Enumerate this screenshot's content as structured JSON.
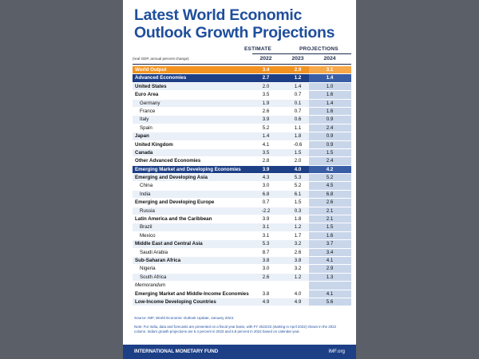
{
  "title": {
    "line1": "Latest World Economic",
    "line2": "Outlook Growth Projections"
  },
  "header": {
    "estimate": "ESTIMATE",
    "projections": "PROJECTIONS",
    "subtitle": "(real GDP, annual percent change)",
    "years": [
      "2022",
      "2023",
      "2024"
    ]
  },
  "rows": [
    {
      "label": "World Output",
      "v": [
        "3.4",
        "2.9",
        "3.1"
      ],
      "style": "orange"
    },
    {
      "label": "Advanced Economies",
      "v": [
        "2.7",
        "1.2",
        "1.4"
      ],
      "style": "navy"
    },
    {
      "label": "United States",
      "v": [
        "2.0",
        "1.4",
        "1.0"
      ],
      "style": "light"
    },
    {
      "label": "Euro Area",
      "v": [
        "3.5",
        "0.7",
        "1.6"
      ],
      "style": "white"
    },
    {
      "label": "Germany",
      "v": [
        "1.9",
        "0.1",
        "1.4"
      ],
      "style": "light",
      "indent": true
    },
    {
      "label": "France",
      "v": [
        "2.6",
        "0.7",
        "1.6"
      ],
      "style": "white",
      "indent": true
    },
    {
      "label": "Italy",
      "v": [
        "3.9",
        "0.6",
        "0.9"
      ],
      "style": "light",
      "indent": true
    },
    {
      "label": "Spain",
      "v": [
        "5.2",
        "1.1",
        "2.4"
      ],
      "style": "white",
      "indent": true
    },
    {
      "label": "Japan",
      "v": [
        "1.4",
        "1.8",
        "0.9"
      ],
      "style": "light"
    },
    {
      "label": "United Kingdom",
      "v": [
        "4.1",
        "-0.6",
        "0.9"
      ],
      "style": "white"
    },
    {
      "label": "Canada",
      "v": [
        "3.5",
        "1.5",
        "1.5"
      ],
      "style": "light"
    },
    {
      "label": "Other Advanced Economies",
      "v": [
        "2.8",
        "2.0",
        "2.4"
      ],
      "style": "white"
    },
    {
      "label": "Emerging Market and Developing Economies",
      "v": [
        "3.9",
        "4.0",
        "4.2"
      ],
      "style": "navy"
    },
    {
      "label": "Emerging and Developing Asia",
      "v": [
        "4.3",
        "5.3",
        "5.2"
      ],
      "style": "light"
    },
    {
      "label": "China",
      "v": [
        "3.0",
        "5.2",
        "4.5"
      ],
      "style": "white",
      "indent": true
    },
    {
      "label": "India",
      "v": [
        "6.8",
        "6.1",
        "6.8"
      ],
      "style": "light",
      "indent": true
    },
    {
      "label": "Emerging and Developing Europe",
      "v": [
        "0.7",
        "1.5",
        "2.6"
      ],
      "style": "white"
    },
    {
      "label": "Russia",
      "v": [
        "-2.2",
        "0.3",
        "2.1"
      ],
      "style": "light",
      "indent": true
    },
    {
      "label": "Latin America and the Caribbean",
      "v": [
        "3.9",
        "1.8",
        "2.1"
      ],
      "style": "white"
    },
    {
      "label": "Brazil",
      "v": [
        "3.1",
        "1.2",
        "1.5"
      ],
      "style": "light",
      "indent": true
    },
    {
      "label": "Mexico",
      "v": [
        "3.1",
        "1.7",
        "1.6"
      ],
      "style": "white",
      "indent": true
    },
    {
      "label": "Middle East and Central Asia",
      "v": [
        "5.3",
        "3.2",
        "3.7"
      ],
      "style": "light"
    },
    {
      "label": "Saudi Arabia",
      "v": [
        "8.7",
        "2.6",
        "3.4"
      ],
      "style": "white",
      "indent": true
    },
    {
      "label": "Sub-Saharan Africa",
      "v": [
        "3.8",
        "3.8",
        "4.1"
      ],
      "style": "light"
    },
    {
      "label": "Nigeria",
      "v": [
        "3.0",
        "3.2",
        "2.9"
      ],
      "style": "white",
      "indent": true
    },
    {
      "label": "South Africa",
      "v": [
        "2.6",
        "1.2",
        "1.3"
      ],
      "style": "light",
      "indent": true
    },
    {
      "label": "Memorandum",
      "v": [
        "",
        "",
        ""
      ],
      "style": "white",
      "italic": true
    },
    {
      "label": "Emerging Market and Middle-Income Economies",
      "v": [
        "3.8",
        "4.0",
        "4.1"
      ],
      "style": "white"
    },
    {
      "label": "Low-Income Developing Countries",
      "v": [
        "4.9",
        "4.9",
        "5.6"
      ],
      "style": "light"
    }
  ],
  "source": "Source: IMF, World Economic Outlook Update, January 2023.",
  "note": "Note: For India, data and forecasts are presented on a fiscal year basis, with FY 2022/23 (starting in April 2022) shown in the 2022 column. India's growth projections are 5.4 percent in 2023 and 6.8 percent in 2024 based on calendar year.",
  "footer": {
    "org": "INTERNATIONAL MONETARY FUND",
    "site": "IMF.org"
  }
}
